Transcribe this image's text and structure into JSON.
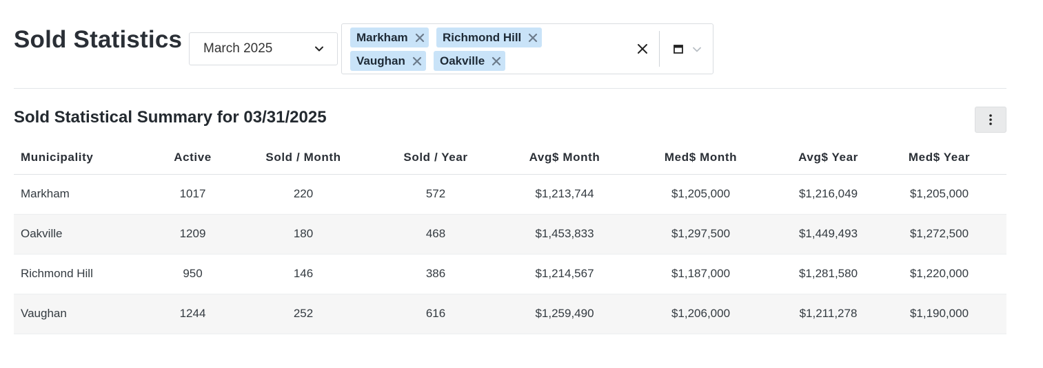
{
  "header": {
    "title": "Sold Statistics"
  },
  "month_select": {
    "value": "March 2025"
  },
  "municipality_filter": {
    "chips": [
      {
        "label": "Markham"
      },
      {
        "label": "Richmond Hill"
      },
      {
        "label": "Vaughan"
      },
      {
        "label": "Oakville"
      }
    ]
  },
  "summary": {
    "title": "Sold Statistical Summary for 03/31/2025",
    "columns": [
      "Municipality",
      "Active",
      "Sold / Month",
      "Sold / Year",
      "Avg$ Month",
      "Med$ Month",
      "Avg$ Year",
      "Med$ Year"
    ],
    "rows": [
      [
        "Markham",
        "1017",
        "220",
        "572",
        "$1,213,744",
        "$1,205,000",
        "$1,216,049",
        "$1,205,000"
      ],
      [
        "Oakville",
        "1209",
        "180",
        "468",
        "$1,453,833",
        "$1,297,500",
        "$1,449,493",
        "$1,272,500"
      ],
      [
        "Richmond Hill",
        "950",
        "146",
        "386",
        "$1,214,567",
        "$1,187,000",
        "$1,281,580",
        "$1,220,000"
      ],
      [
        "Vaughan",
        "1244",
        "252",
        "616",
        "$1,259,490",
        "$1,206,000",
        "$1,211,278",
        "$1,190,000"
      ]
    ]
  }
}
